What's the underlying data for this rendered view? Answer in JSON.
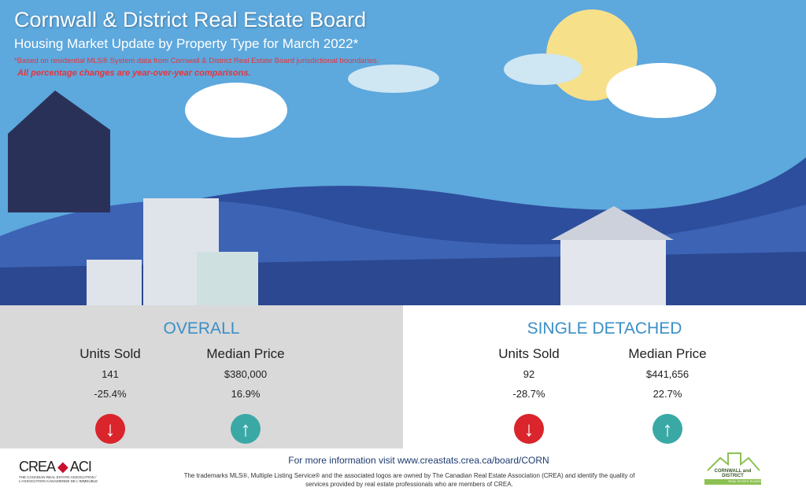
{
  "header": {
    "title": "Cornwall & District Real Estate Board",
    "subtitle": "Housing Market Update by Property Type for March 2022*",
    "note": "*Based on residential MLS® System data from Cornwall & District Real Estate Board jurisdictional boundaries.",
    "note2": "All percentage changes are year-over-year comparisons."
  },
  "sections": [
    {
      "title": "OVERALL",
      "units_label": "Units Sold",
      "units": "141",
      "units_change": "-25.4%",
      "units_trend": "down",
      "price_label": "Median Price",
      "price": "$380,000",
      "price_change": "16.9%",
      "price_trend": "up"
    },
    {
      "title": "SINGLE DETACHED",
      "units_label": "Units Sold",
      "units": "92",
      "units_change": "-28.7%",
      "units_trend": "down",
      "price_label": "Median Price",
      "price": "$441,656",
      "price_change": "22.7%",
      "price_trend": "up"
    }
  ],
  "footer": {
    "info": "For more information visit www.creastats.crea.ca/board/CORN",
    "trademark": "The trademarks MLS®, Multiple Listing Service® and the associated logos are owned by The Canadian Real Estate Association (CREA) and identify the quality of services provided by real estate professionals who are members of CREA."
  },
  "logos": {
    "crea": "CREA ACI",
    "crea_sub": "THE CANADIAN REAL ESTATE ASSOCIATION / L'ASSOCIATION CANADIENNE DE L'IMMEUBLE",
    "board": "CORNWALL and DISTRICT",
    "board_sub": "REAL ESTATE BOARD"
  },
  "colors": {
    "sky": "#5da8dd",
    "accent": "#3a8fc7",
    "down": "#d9252b",
    "up": "#3aa9a6"
  }
}
